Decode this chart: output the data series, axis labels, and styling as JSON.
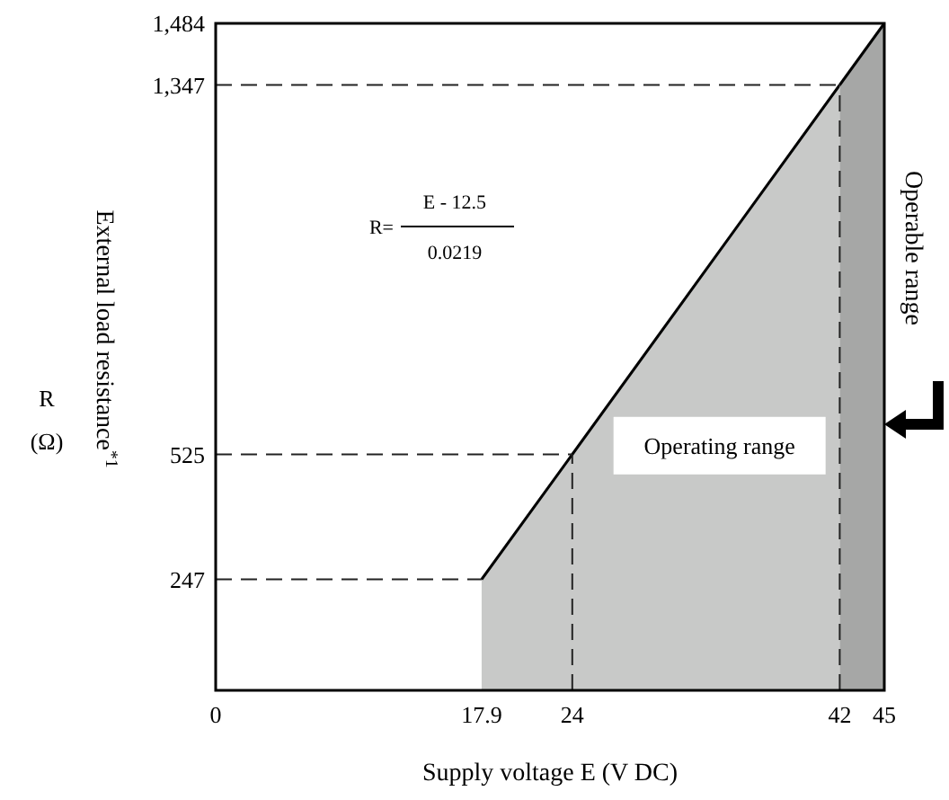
{
  "chart_data": {
    "type": "area",
    "xlabel": "Supply voltage E (V DC)",
    "ylabel": "External load resistance$^{*1}$",
    "annotations": [
      "R=",
      "E - 12.5",
      "0.0219",
      "R",
      "(Ω)"
    ],
    "xlim": [
      0,
      45
    ],
    "ylim": [
      0,
      1484
    ],
    "xticks": [
      0,
      17.9,
      24,
      42,
      45
    ],
    "yticks": [
      247,
      525,
      {
        "value": 1347,
        "label": "1,347"
      },
      {
        "value": 1484,
        "label": "1,484"
      }
    ],
    "series": [
      {
        "name": "Operating range",
        "color": "#c8c9c8",
        "x": [
          17.9,
          24,
          42
        ],
        "values": [
          247,
          525,
          1347
        ]
      },
      {
        "name": "Operable range",
        "color": "#a6a7a6",
        "x": [
          42,
          45
        ],
        "values": [
          1347,
          1484
        ]
      }
    ],
    "ref_lines": [
      {
        "axis": "y",
        "value": 247,
        "line_style": "dashed"
      },
      {
        "axis": "y",
        "value": 525,
        "line_style": "dashed"
      },
      {
        "axis": "y",
        "value": 1347,
        "line_style": "dashed"
      },
      {
        "axis": "x",
        "value": 24,
        "line_style": "dashed"
      },
      {
        "axis": "x",
        "value": 42,
        "line_style": "dashed"
      }
    ],
    "grid": false
  }
}
